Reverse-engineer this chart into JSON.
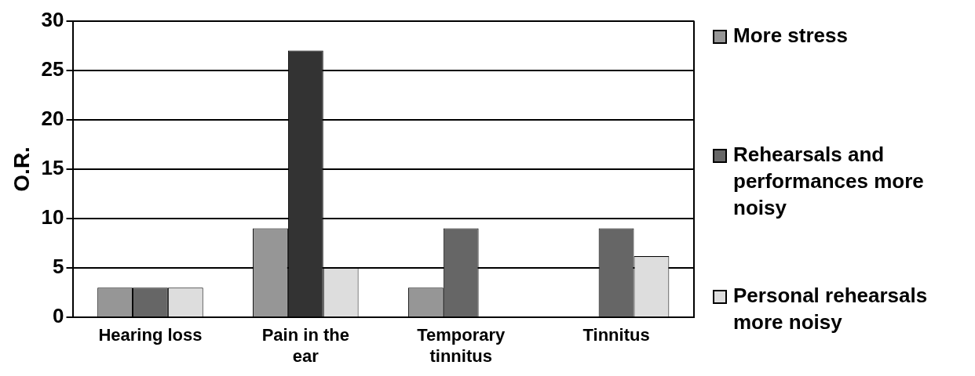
{
  "chart_data": {
    "type": "bar",
    "ylabel": "O.R.",
    "categories": [
      "Hearing loss",
      "Pain in the ear",
      "Temporary tinnitus",
      "Tinnitus"
    ],
    "series": [
      {
        "name": "More stress",
        "color": "#969696",
        "values": [
          3,
          9,
          3,
          null
        ]
      },
      {
        "name": "Rehearsals and performances more noisy",
        "color": "#666666",
        "colors": [
          "#666666",
          "#333333",
          "#666666",
          "#666666"
        ],
        "values": [
          3,
          27,
          9,
          9
        ]
      },
      {
        "name": "Personal rehearsals more noisy",
        "color": "#dddddd",
        "values": [
          3,
          5,
          null,
          6.2
        ]
      }
    ],
    "ylim": [
      0,
      30
    ],
    "yticks": [
      0,
      5,
      10,
      15,
      20,
      25,
      30
    ],
    "grid": "y",
    "legend": "right"
  }
}
